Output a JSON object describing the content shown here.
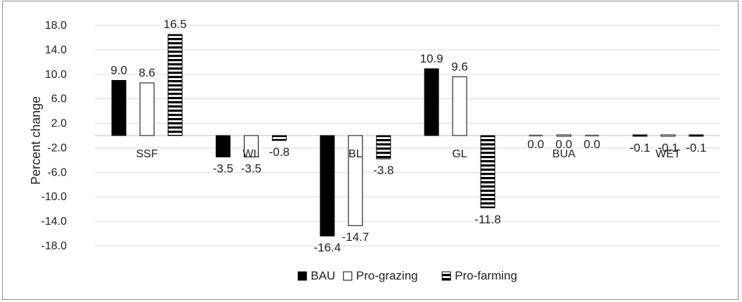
{
  "chart_data": {
    "type": "bar",
    "title": "",
    "xlabel": "",
    "ylabel": "Percent change",
    "ylim": [
      -18.0,
      18.0
    ],
    "yticks": [
      "18.0",
      "14.0",
      "10.0",
      "6.0",
      "2.0",
      "-2.0",
      "-6.0",
      "-10.0",
      "-14.0",
      "-18.0"
    ],
    "categories": [
      "SSF",
      "WL",
      "BL",
      "GL",
      "BUA",
      "WET"
    ],
    "series": [
      {
        "name": "BAU",
        "values": [
          9.0,
          -3.5,
          -16.4,
          10.9,
          0.0,
          -0.1
        ],
        "labels": [
          "9.0",
          "-3.5",
          "-16.4",
          "10.9",
          "0.0",
          "-0.1"
        ],
        "color": "#000000",
        "pattern": "solid"
      },
      {
        "name": "Pro-grazing",
        "values": [
          8.6,
          -3.5,
          -14.7,
          9.6,
          0.0,
          -0.1
        ],
        "labels": [
          "8.6",
          "-3.5",
          "-14.7",
          "9.6",
          "0.0",
          "-0.1"
        ],
        "color": "#ffffff",
        "pattern": "hollow"
      },
      {
        "name": "Pro-farming",
        "values": [
          16.5,
          -0.8,
          -3.8,
          -11.8,
          0.0,
          -0.1
        ],
        "labels": [
          "16.5",
          "-0.8",
          "-3.8",
          "-11.8",
          "0.0",
          "-0.1"
        ],
        "color": "#000000",
        "pattern": "horizontal-stripes"
      }
    ],
    "legend": {
      "position": "bottom",
      "entries": [
        "BAU",
        "Pro-grazing",
        "Pro-farming"
      ]
    },
    "grid": true
  }
}
